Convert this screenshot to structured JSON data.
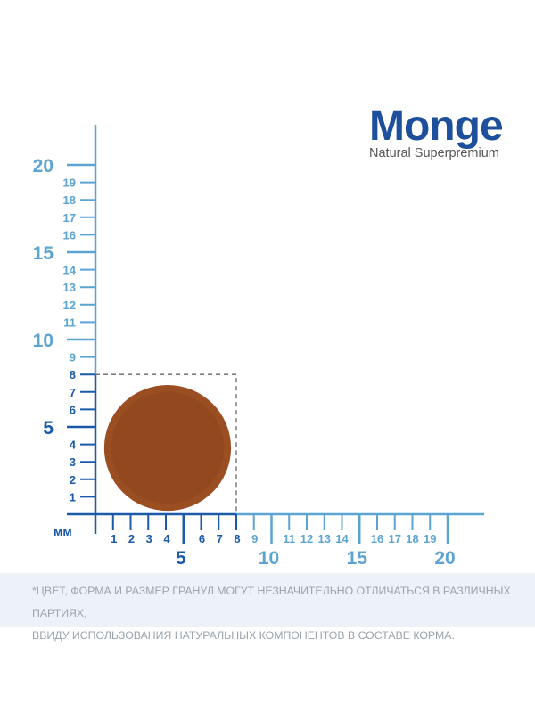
{
  "logo": {
    "brand": "Monge",
    "tagline": "Natural Superpremium"
  },
  "ruler": {
    "unit": "мм",
    "max": 20,
    "highlight": 8,
    "dark_color": "#1a5aa8",
    "light_color": "#5ca4d2",
    "kibble_color": "#9a4e22"
  },
  "note": {
    "line1": "*ЦВЕТ, ФОРМА И РАЗМЕР ГРАНУЛ МОГУТ НЕЗНАЧИТЕЛЬНО ОТЛИЧАТЬСЯ В РАЗЛИЧНЫХ ПАРТИЯХ,",
    "line2": "ВВИДУ ИСПОЛЬЗОВАНИЯ НАТУРАЛЬНЫХ КОМПОНЕНТОВ В СОСТАВЕ КОРМА."
  }
}
